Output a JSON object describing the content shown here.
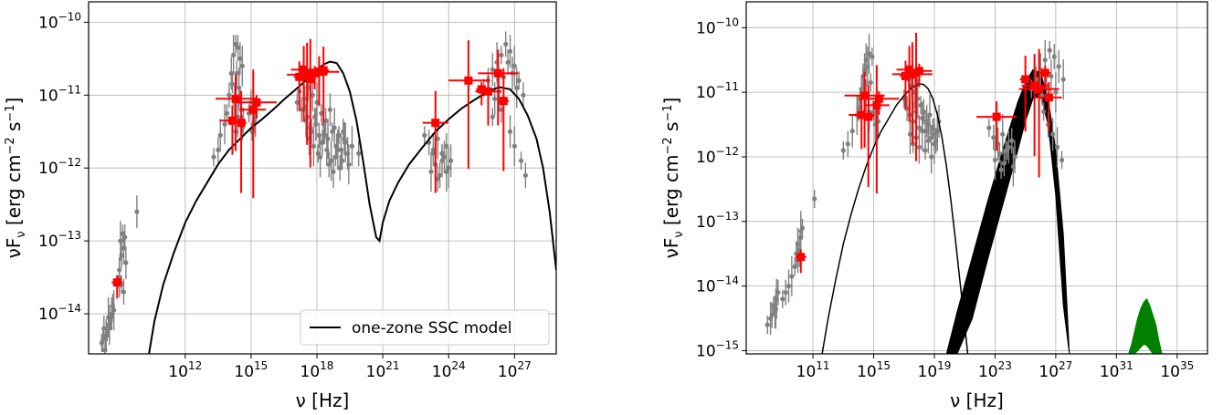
{
  "chart_data": [
    {
      "type": "scatter",
      "xlabel": "ν [Hz]",
      "ylabel": "νF_ν [erg cm^-2 s^-1]",
      "x_scale": "log",
      "y_scale": "log",
      "xlim_log10": [
        7.6,
        28.9
      ],
      "ylim_log10": [
        -14.55,
        -9.72
      ],
      "x_ticks": [
        {
          "base": "10",
          "exp": "12"
        },
        {
          "base": "10",
          "exp": "15"
        },
        {
          "base": "10",
          "exp": "18"
        },
        {
          "base": "10",
          "exp": "21"
        },
        {
          "base": "10",
          "exp": "24"
        },
        {
          "base": "10",
          "exp": "27"
        }
      ],
      "y_ticks": [
        {
          "base": "10",
          "exp": "−14"
        },
        {
          "base": "10",
          "exp": "−13"
        },
        {
          "base": "10",
          "exp": "−12"
        },
        {
          "base": "10",
          "exp": "−11"
        },
        {
          "base": "10",
          "exp": "−10"
        }
      ],
      "grid": true,
      "legend": {
        "placement": "lower right",
        "entries": [
          {
            "label": "one-zone SSC model",
            "color": "#000000"
          }
        ]
      },
      "colors": {
        "archival": "#808080",
        "simultaneous": "#ff0000",
        "model": "#000000"
      },
      "model_curve": {
        "log_x": [
          10.35,
          10.6,
          11,
          11.5,
          12,
          12.5,
          13,
          13.5,
          14,
          14.5,
          15,
          15.5,
          16,
          16.5,
          17,
          17.5,
          18,
          18.3,
          18.6,
          18.9,
          19.2,
          19.5,
          19.8,
          20.1,
          20.4,
          20.7,
          20.85,
          21.0,
          21.3,
          21.7,
          22.2,
          22.8,
          23.4,
          24.0,
          24.6,
          25.2,
          25.8,
          26.3,
          26.8,
          27.2,
          27.6,
          28.0,
          28.3,
          28.6,
          28.75,
          28.9
        ],
        "log_y": [
          -14.55,
          -14.1,
          -13.6,
          -13.15,
          -12.75,
          -12.45,
          -12.2,
          -11.95,
          -11.75,
          -11.6,
          -11.45,
          -11.33,
          -11.2,
          -11.06,
          -10.93,
          -10.8,
          -10.65,
          -10.58,
          -10.54,
          -10.56,
          -10.7,
          -10.95,
          -11.35,
          -11.9,
          -12.5,
          -12.95,
          -13.0,
          -12.75,
          -12.45,
          -12.2,
          -11.95,
          -11.72,
          -11.5,
          -11.33,
          -11.18,
          -11.06,
          -10.95,
          -10.89,
          -10.92,
          -11.05,
          -11.28,
          -11.6,
          -12.0,
          -12.6,
          -13.0,
          -13.4
        ]
      },
      "archival_points": [
        {
          "log_x": [
            8.2,
            8.3,
            8.4,
            8.5,
            8.6,
            8.7,
            8.35,
            8.55,
            8.45,
            8.25,
            8.65,
            8.75
          ],
          "log_y": [
            -14.4,
            -14.2,
            -14.3,
            -14.05,
            -14.1,
            -13.9,
            -14.5,
            -14.15,
            -14.25,
            -14.35,
            -14.0,
            -13.95
          ]
        },
        {
          "log_x": [
            9.0,
            9.1,
            9.2,
            9.05,
            9.15,
            9.25,
            9.3,
            9.0,
            9.1,
            9.2,
            9.8
          ],
          "log_y": [
            -13.4,
            -13.2,
            -13.1,
            -13.0,
            -12.9,
            -12.95,
            -13.3,
            -13.5,
            -13.6,
            -13.7,
            -12.6
          ]
        },
        {
          "log_x": [
            13.3,
            13.5,
            13.6,
            13.8,
            13.9,
            14.0,
            14.1,
            14.2,
            14.3,
            14.4,
            14.5,
            14.6,
            14.15,
            14.35,
            14.25,
            14.45,
            14.55,
            14.65,
            14.3,
            14.4,
            14.5,
            14.6
          ],
          "log_y": [
            -11.85,
            -11.75,
            -11.55,
            -11.4,
            -11.25,
            -11.0,
            -10.7,
            -10.45,
            -10.3,
            -10.35,
            -10.5,
            -10.6,
            -10.85,
            -10.7,
            -11.1,
            -10.9,
            -11.2,
            -11.35,
            -11.5,
            -11.3,
            -11.0,
            -11.45
          ]
        },
        {
          "log_x": [
            14.9,
            15.0,
            15.1,
            15.2,
            15.05,
            15.15
          ],
          "log_y": [
            -11.25,
            -11.1,
            -11.4,
            -11.3,
            -11.5,
            -11.35
          ]
        },
        {
          "log_x": [
            17.1,
            17.3,
            17.5,
            17.7,
            17.9,
            18.1,
            18.3,
            18.5,
            18.7,
            18.9,
            19.1,
            19.3,
            17.4,
            17.6,
            17.8,
            18.0,
            18.2,
            18.4,
            18.6,
            18.8,
            19.0,
            19.2,
            19.4,
            19.6,
            17.2,
            17.45,
            17.65,
            17.85,
            18.05,
            18.25,
            18.45,
            18.65,
            18.85,
            19.05,
            19.25,
            19.45,
            17.55,
            17.75,
            17.95,
            18.15,
            18.35,
            18.55,
            18.75,
            18.95,
            19.15,
            19.9
          ],
          "log_y": [
            -11.1,
            -11.2,
            -11.35,
            -11.45,
            -11.3,
            -11.55,
            -11.4,
            -11.6,
            -11.5,
            -11.7,
            -11.75,
            -11.65,
            -10.8,
            -10.9,
            -11.0,
            -11.1,
            -11.25,
            -11.35,
            -11.2,
            -11.45,
            -11.55,
            -11.5,
            -11.8,
            -11.7,
            -10.95,
            -11.05,
            -11.6,
            -11.7,
            -11.8,
            -11.65,
            -11.75,
            -11.9,
            -11.85,
            -12.0,
            -11.6,
            -11.95,
            -11.3,
            -11.5,
            -11.4,
            -11.85,
            -11.55,
            -11.95,
            -12.05,
            -11.75,
            -11.9,
            -11.8
          ]
        },
        {
          "log_x": [
            22.9,
            23.1,
            23.3,
            23.5,
            23.7,
            23.9,
            24.1,
            23.2,
            23.4,
            23.6,
            23.8,
            24.0,
            23.3,
            23.5,
            23.7,
            23.9
          ],
          "log_y": [
            -11.55,
            -11.65,
            -11.75,
            -11.6,
            -11.8,
            -11.7,
            -11.9,
            -12.05,
            -11.95,
            -12.1,
            -11.85,
            -12.0,
            -11.8,
            -12.15,
            -11.9,
            -12.05
          ]
        },
        {
          "log_x": [
            25.6,
            25.8,
            26.0,
            26.2,
            26.4,
            26.6,
            26.8,
            27.0,
            27.2,
            27.4,
            26.1,
            26.3,
            26.5,
            26.7,
            26.9,
            27.1,
            26.0,
            26.4,
            26.8,
            27.0,
            27.3,
            27.5
          ],
          "log_y": [
            -10.9,
            -10.8,
            -10.65,
            -10.55,
            -10.45,
            -10.3,
            -10.4,
            -10.6,
            -10.8,
            -11.0,
            -11.05,
            -10.95,
            -10.75,
            -10.55,
            -10.7,
            -10.9,
            -11.3,
            -11.2,
            -11.5,
            -11.7,
            -11.9,
            -12.1
          ]
        }
      ],
      "simultaneous_points": [
        {
          "log_x": 8.9,
          "log_y": -13.57
        },
        {
          "log_x": 14.15,
          "log_y": -11.35
        },
        {
          "log_x": 14.3,
          "log_y": -11.05
        },
        {
          "log_x": 14.55,
          "log_y": -11.38
        },
        {
          "log_x": 15.1,
          "log_y": -11.2
        },
        {
          "log_x": 15.25,
          "log_y": -11.1
        },
        {
          "log_x": 17.2,
          "log_y": -10.75
        },
        {
          "log_x": 17.4,
          "log_y": -10.65
        },
        {
          "log_x": 17.55,
          "log_y": -10.72
        },
        {
          "log_x": 17.7,
          "log_y": -10.78
        },
        {
          "log_x": 17.9,
          "log_y": -10.7
        },
        {
          "log_x": 18.1,
          "log_y": -10.68
        },
        {
          "log_x": 18.3,
          "log_y": -10.66
        },
        {
          "log_x": 23.4,
          "log_y": -11.38
        },
        {
          "log_x": 24.9,
          "log_y": -10.8
        },
        {
          "log_x": 25.5,
          "log_y": -10.92
        },
        {
          "log_x": 25.8,
          "log_y": -10.95
        },
        {
          "log_x": 26.25,
          "log_y": -10.7
        },
        {
          "log_x": 26.5,
          "log_y": -11.08
        }
      ]
    },
    {
      "type": "scatter",
      "xlabel": "ν [Hz]",
      "ylabel": "νF_ν [erg cm^-2 s^-1]",
      "x_scale": "log",
      "y_scale": "log",
      "xlim_log10": [
        6.6,
        37.0
      ],
      "ylim_log10": [
        -15.05,
        -9.6
      ],
      "x_ticks": [
        {
          "base": "10",
          "exp": "11"
        },
        {
          "base": "10",
          "exp": "15"
        },
        {
          "base": "10",
          "exp": "19"
        },
        {
          "base": "10",
          "exp": "23"
        },
        {
          "base": "10",
          "exp": "27"
        },
        {
          "base": "10",
          "exp": "31"
        },
        {
          "base": "10",
          "exp": "35"
        }
      ],
      "y_ticks": [
        {
          "base": "10",
          "exp": "−15"
        },
        {
          "base": "10",
          "exp": "−14"
        },
        {
          "base": "10",
          "exp": "−13"
        },
        {
          "base": "10",
          "exp": "−12"
        },
        {
          "base": "10",
          "exp": "−11"
        },
        {
          "base": "10",
          "exp": "−10"
        }
      ],
      "grid": true,
      "colors": {
        "archival": "#808080",
        "simultaneous": "#ff0000",
        "model": "#000000",
        "band": "#000000",
        "neutrino": "#008000"
      },
      "synchrotron_curve": {
        "log_x": [
          11.6,
          12.0,
          12.5,
          13.0,
          13.5,
          14.0,
          14.5,
          15.0,
          15.5,
          16.0,
          16.5,
          17.0,
          17.5,
          18.0,
          18.3,
          18.6,
          18.9,
          19.2,
          19.5,
          19.8,
          20.1,
          20.4,
          20.7,
          21.0,
          21.2
        ],
        "log_y": [
          -15.05,
          -14.5,
          -13.9,
          -13.35,
          -12.9,
          -12.5,
          -12.15,
          -11.85,
          -11.6,
          -11.4,
          -11.2,
          -11.05,
          -10.93,
          -10.87,
          -10.88,
          -10.95,
          -11.1,
          -11.35,
          -11.7,
          -12.15,
          -12.7,
          -13.3,
          -13.95,
          -14.6,
          -15.05
        ]
      },
      "ic_band": {
        "log_x": [
          19.8,
          20.5,
          21.5,
          22.5,
          23.5,
          24.5,
          25.0,
          25.5,
          26.0,
          26.5,
          27.0,
          27.5,
          27.9
        ],
        "log_y_upper": [
          -15.05,
          -14.4,
          -13.55,
          -12.7,
          -11.9,
          -11.15,
          -10.85,
          -10.65,
          -10.7,
          -11.1,
          -11.9,
          -13.2,
          -15.05
        ],
        "log_y_lower": [
          -15.05,
          -15.05,
          -14.5,
          -13.6,
          -12.75,
          -11.9,
          -11.45,
          -11.1,
          -11.05,
          -11.5,
          -12.6,
          -14.3,
          -15.05
        ]
      },
      "neutrino_band": {
        "log_x": [
          31.8,
          32.0,
          32.2,
          32.4,
          32.6,
          32.8,
          33.0,
          33.2,
          33.4,
          33.6,
          33.8,
          34.0
        ],
        "log_y_upper": [
          -15.05,
          -14.9,
          -14.7,
          -14.5,
          -14.35,
          -14.25,
          -14.2,
          -14.3,
          -14.45,
          -14.6,
          -14.85,
          -15.05
        ],
        "log_y_lower": [
          -15.05,
          -15.05,
          -15.05,
          -15.0,
          -14.95,
          -14.9,
          -14.92,
          -14.98,
          -15.05,
          -15.05,
          -15.05,
          -15.05
        ]
      },
      "archival_points": [
        {
          "log_x": [
            8.0,
            8.3,
            8.5,
            8.6,
            8.4,
            8.7,
            8.2,
            8.55
          ],
          "log_y": [
            -14.6,
            -14.45,
            -14.4,
            -14.2,
            -14.3,
            -14.1,
            -14.5,
            -14.35
          ]
        },
        {
          "log_x": [
            9.0,
            9.2,
            9.4,
            9.6,
            9.8,
            10.0,
            10.1,
            10.2,
            10.3,
            9.9,
            10.0,
            10.2,
            11.1
          ],
          "log_y": [
            -14.2,
            -14.1,
            -14.0,
            -13.85,
            -13.7,
            -13.6,
            -13.45,
            -13.25,
            -13.1,
            -13.5,
            -13.35,
            -13.15,
            -12.65
          ]
        },
        {
          "log_x": [
            13.0,
            13.3,
            13.6,
            13.9,
            14.1,
            14.3,
            14.5,
            14.7,
            14.9,
            14.2,
            14.4,
            14.6,
            14.8,
            14.0,
            14.5,
            14.7
          ],
          "log_y": [
            -11.9,
            -11.8,
            -11.6,
            -11.35,
            -11.1,
            -10.75,
            -10.5,
            -10.4,
            -10.45,
            -10.95,
            -10.65,
            -10.6,
            -10.85,
            -11.25,
            -11.05,
            -11.3
          ]
        },
        {
          "log_x": [
            15.0,
            15.2,
            15.3,
            15.1
          ],
          "log_y": [
            -11.3,
            -11.2,
            -11.45,
            -11.5
          ]
        },
        {
          "log_x": [
            17.0,
            17.2,
            17.4,
            17.6,
            17.8,
            18.0,
            18.2,
            18.4,
            18.6,
            18.8,
            19.0,
            19.2,
            17.3,
            17.5,
            17.7,
            17.9,
            18.1,
            18.3,
            18.5,
            18.7,
            18.9,
            19.1,
            19.3,
            17.4,
            17.6,
            17.8,
            18.0,
            18.2,
            18.4,
            18.6,
            18.8,
            19.0
          ],
          "log_y": [
            -11.1,
            -11.25,
            -11.35,
            -11.45,
            -11.3,
            -11.55,
            -11.4,
            -11.6,
            -11.5,
            -11.7,
            -11.65,
            -11.6,
            -10.8,
            -10.9,
            -11.0,
            -11.1,
            -11.2,
            -11.3,
            -11.45,
            -11.35,
            -11.55,
            -11.75,
            -11.45,
            -11.65,
            -11.8,
            -11.7,
            -11.85,
            -11.6,
            -11.9,
            -11.75,
            -12.0,
            -11.8
          ]
        },
        {
          "log_x": [
            22.6,
            22.9,
            23.2,
            23.5,
            23.8,
            24.1,
            24.3,
            23.0,
            23.3,
            23.6,
            23.9,
            24.2,
            23.4,
            23.7
          ],
          "log_y": [
            -11.55,
            -11.7,
            -11.8,
            -11.65,
            -11.9,
            -11.75,
            -12.0,
            -12.05,
            -11.95,
            -12.1,
            -11.85,
            -12.15,
            -12.2,
            -11.9
          ]
        },
        {
          "log_x": [
            25.4,
            25.7,
            26.0,
            26.3,
            26.6,
            26.9,
            27.2,
            27.5,
            26.1,
            26.4,
            26.7,
            27.0,
            26.2,
            26.5,
            26.8,
            27.1,
            27.4
          ],
          "log_y": [
            -10.95,
            -10.8,
            -10.65,
            -10.5,
            -10.35,
            -10.45,
            -10.6,
            -10.8,
            -11.05,
            -10.9,
            -10.75,
            -11.0,
            -11.3,
            -11.5,
            -11.65,
            -11.85,
            -12.05
          ]
        }
      ],
      "simultaneous_points": [
        {
          "log_x": 10.2,
          "log_y": -13.55
        },
        {
          "log_x": 14.2,
          "log_y": -11.35
        },
        {
          "log_x": 14.4,
          "log_y": -11.05
        },
        {
          "log_x": 14.65,
          "log_y": -11.38
        },
        {
          "log_x": 15.2,
          "log_y": -11.2
        },
        {
          "log_x": 15.35,
          "log_y": -11.1
        },
        {
          "log_x": 17.1,
          "log_y": -10.75
        },
        {
          "log_x": 17.35,
          "log_y": -10.65
        },
        {
          "log_x": 17.55,
          "log_y": -10.72
        },
        {
          "log_x": 17.8,
          "log_y": -10.7
        },
        {
          "log_x": 18.0,
          "log_y": -10.67
        },
        {
          "log_x": 23.1,
          "log_y": -11.38
        },
        {
          "log_x": 25.0,
          "log_y": -10.8
        },
        {
          "log_x": 25.6,
          "log_y": -10.9
        },
        {
          "log_x": 25.9,
          "log_y": -10.95
        },
        {
          "log_x": 26.3,
          "log_y": -10.7
        },
        {
          "log_x": 26.55,
          "log_y": -11.08
        }
      ]
    }
  ]
}
